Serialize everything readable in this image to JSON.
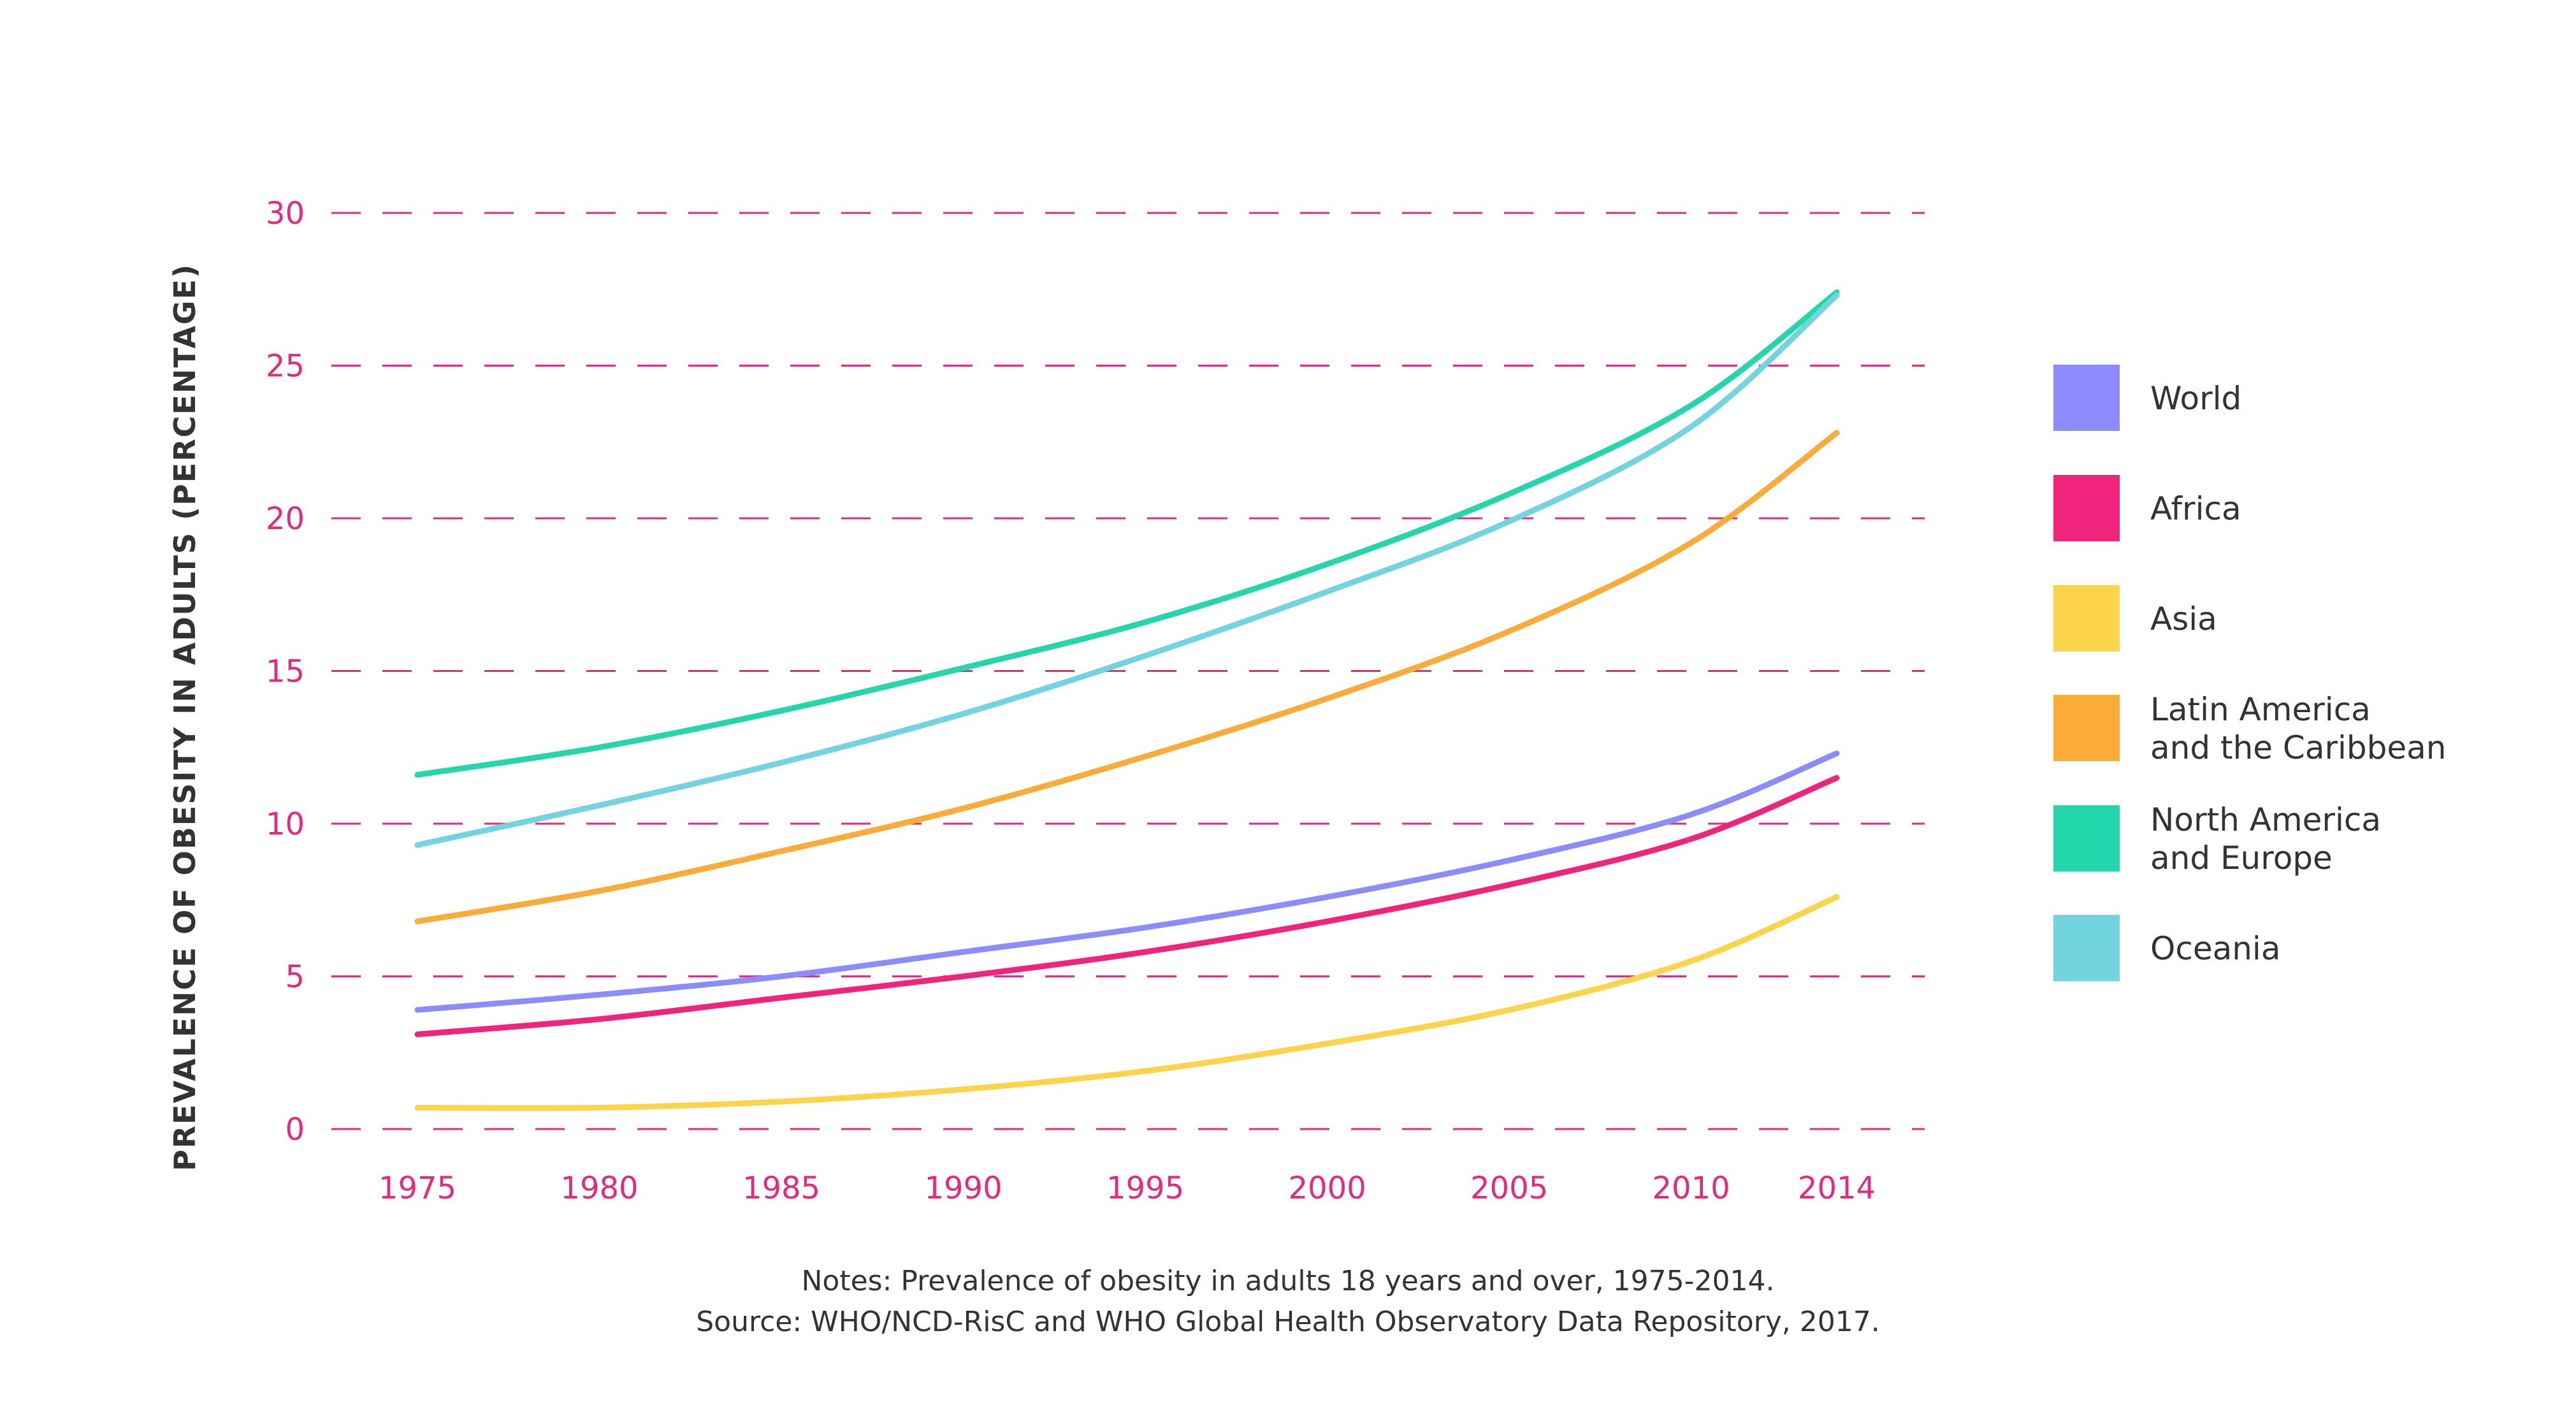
{
  "chart_data": {
    "type": "line",
    "ylabel": "PREVALENCE OF OBESITY IN ADULTS (PERCENTAGE)",
    "xlabel": "",
    "ylim": [
      0,
      30
    ],
    "y_ticks": [
      0,
      5,
      10,
      15,
      20,
      25,
      30
    ],
    "x_ticks": [
      1975,
      1980,
      1985,
      1990,
      1995,
      2000,
      2005,
      2010,
      2014
    ],
    "xlim": [
      1975,
      2014
    ],
    "grid": true,
    "legend_position": "right",
    "series": [
      {
        "name": "World",
        "color": "#8c8cff",
        "x": [
          1975,
          1980,
          1985,
          1990,
          1995,
          2000,
          2005,
          2010,
          2014
        ],
        "y": [
          3.9,
          4.4,
          5.0,
          5.8,
          6.6,
          7.6,
          8.8,
          10.3,
          12.3
        ]
      },
      {
        "name": "Africa",
        "color": "#f0247d",
        "x": [
          1975,
          1980,
          1985,
          1990,
          1995,
          2000,
          2005,
          2010,
          2014
        ],
        "y": [
          3.1,
          3.6,
          4.3,
          5.0,
          5.8,
          6.8,
          8.0,
          9.5,
          11.5
        ]
      },
      {
        "name": "Asia",
        "color": "#fcd44a",
        "x": [
          1975,
          1980,
          1985,
          1990,
          1995,
          2000,
          2005,
          2010,
          2014
        ],
        "y": [
          0.7,
          0.7,
          0.9,
          1.3,
          1.9,
          2.8,
          3.9,
          5.5,
          7.6
        ]
      },
      {
        "name": "Latin America\nand the Caribbean",
        "color": "#fbab37",
        "x": [
          1975,
          1980,
          1985,
          1990,
          1995,
          2000,
          2005,
          2010,
          2014
        ],
        "y": [
          6.8,
          7.8,
          9.1,
          10.5,
          12.2,
          14.1,
          16.3,
          19.2,
          22.8
        ]
      },
      {
        "name": "North America\nand Europe",
        "color": "#23d6ac",
        "x": [
          1975,
          1980,
          1985,
          1990,
          1995,
          2000,
          2005,
          2010,
          2014
        ],
        "y": [
          11.6,
          12.5,
          13.7,
          15.1,
          16.6,
          18.5,
          20.8,
          23.7,
          27.4
        ]
      },
      {
        "name": "Oceania",
        "color": "#72d4de",
        "x": [
          1975,
          1980,
          1985,
          1990,
          1995,
          2000,
          2005,
          2010,
          2014
        ],
        "y": [
          9.3,
          10.6,
          12.0,
          13.6,
          15.5,
          17.6,
          19.9,
          23.0,
          27.3
        ]
      }
    ],
    "notes": [
      "Notes: Prevalence of obesity in adults 18 years and over, 1975-2014.",
      "Source: WHO/NCD-RisC and WHO Global Health Observatory Data Repository, 2017."
    ],
    "tick_color": "#e8277e",
    "grid_color": "#e8277e"
  }
}
